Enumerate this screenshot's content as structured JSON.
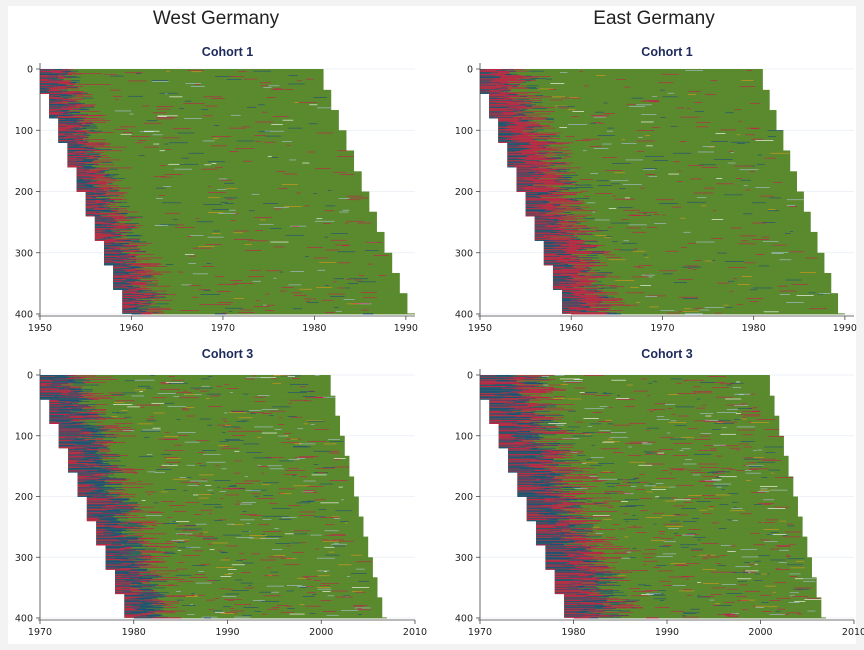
{
  "headings": {
    "west": "West Germany",
    "east": "East Germany"
  },
  "colors": {
    "navy": "#1f4e79",
    "red": "#c0234a",
    "green": "#5b8a2e",
    "orange": "#d99a1c",
    "lightblue": "#a9c3d6",
    "white": "#ffffff"
  },
  "chart_data": [
    {
      "type": "sequence_index_plot",
      "region": "West Germany",
      "title": "Cohort 1",
      "x_ticks": [
        "1950",
        "1960",
        "1970",
        "1980",
        "1990"
      ],
      "xlim": [
        1950,
        1991
      ],
      "y_ticks": [
        "0",
        "100",
        "200",
        "300",
        "400"
      ],
      "ylim": [
        0,
        400
      ],
      "start_year": [
        1950,
        1960
      ],
      "end_year": [
        1981,
        1991
      ]
    },
    {
      "type": "sequence_index_plot",
      "region": "East Germany",
      "title": "Cohort 1",
      "x_ticks": [
        "1950",
        "1960",
        "1970",
        "1980",
        "1990"
      ],
      "xlim": [
        1950,
        1991
      ],
      "y_ticks": [
        "0",
        "100",
        "200",
        "300",
        "400"
      ],
      "ylim": [
        0,
        400
      ],
      "start_year": [
        1950,
        1960
      ],
      "end_year": [
        1981,
        1990
      ]
    },
    {
      "type": "sequence_index_plot",
      "region": "West Germany",
      "title": "Cohort 3",
      "x_ticks": [
        "1970",
        "1980",
        "1990",
        "2000",
        "2010"
      ],
      "xlim": [
        1970,
        2010
      ],
      "y_ticks": [
        "0",
        "100",
        "200",
        "300",
        "400"
      ],
      "ylim": [
        0,
        400
      ],
      "start_year": [
        1970,
        1980
      ],
      "end_year": [
        2001,
        2007
      ]
    },
    {
      "type": "sequence_index_plot",
      "region": "East Germany",
      "title": "Cohort 3",
      "x_ticks": [
        "1970",
        "1980",
        "1990",
        "2000",
        "2010"
      ],
      "xlim": [
        1970,
        2010
      ],
      "y_ticks": [
        "0",
        "100",
        "200",
        "300",
        "400"
      ],
      "ylim": [
        0,
        400
      ],
      "start_year": [
        1970,
        1980
      ],
      "end_year": [
        2001,
        2007
      ]
    }
  ]
}
